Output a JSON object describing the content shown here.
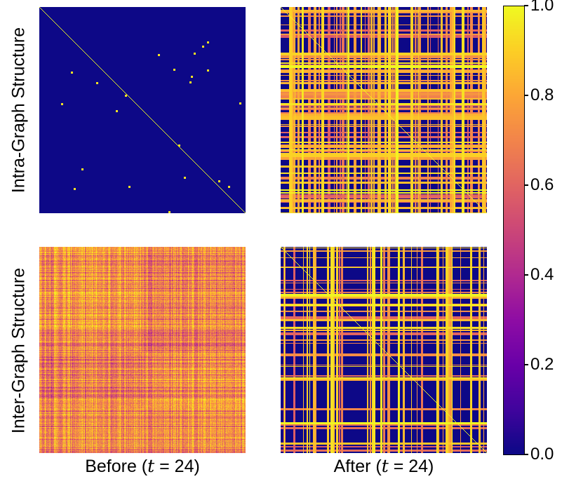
{
  "chart_data": {
    "type": "heatmap",
    "panels": [
      {
        "row": "Intra-Graph Structure",
        "col": "Before",
        "pattern": "diagonal with sparse isolated points on dark background",
        "value_range": [
          0.0,
          1.0
        ]
      },
      {
        "row": "Intra-Graph Structure",
        "col": "After",
        "pattern": "dense grid of bright horizontal and vertical bands plus diagonal",
        "value_range": [
          0.0,
          1.0
        ]
      },
      {
        "row": "Inter-Graph Structure",
        "col": "Before",
        "pattern": "dense mid-to-high values everywhere (pink/yellow texture)",
        "value_range": [
          0.3,
          1.0
        ]
      },
      {
        "row": "Inter-Graph Structure",
        "col": "After",
        "pattern": "bright horizontal and vertical bands plus diagonal on dark background",
        "value_range": [
          0.0,
          1.0
        ]
      }
    ],
    "row_labels": [
      "Intra-Graph Structure",
      "Inter-Graph Structure"
    ],
    "col_labels": [
      {
        "text": "Before (",
        "math": "t",
        "rest": " = 24)"
      },
      {
        "text": "After (",
        "math": "t",
        "rest": " = 24)"
      }
    ],
    "colorbar": {
      "colormap": "plasma",
      "range": [
        0.0,
        1.0
      ],
      "ticks": [
        "0.0",
        "0.2",
        "0.4",
        "0.6",
        "0.8",
        "1.0"
      ],
      "tick_values": [
        0.0,
        0.2,
        0.4,
        0.6,
        0.8,
        1.0
      ],
      "placement": "right"
    },
    "grid": false,
    "colors": {
      "low": "#0d0887",
      "high": "#f0f921"
    }
  }
}
